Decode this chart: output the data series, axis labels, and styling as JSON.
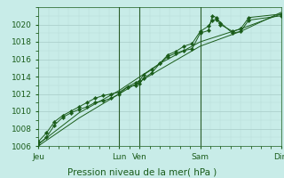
{
  "background_color": "#c8ece8",
  "plot_bg_color": "#c8ece8",
  "grid_major_color": "#a8ccc8",
  "grid_minor_color": "#b8dcd8",
  "line_color": "#1a5c1a",
  "marker_color": "#1a5c1a",
  "vline_color": "#2a5c2a",
  "xlabel": "Pression niveau de la mer( hPa )",
  "xlabel_fontsize": 7.5,
  "tick_fontsize": 6.5,
  "ylim": [
    1006,
    1022
  ],
  "yticks": [
    1006,
    1008,
    1010,
    1012,
    1014,
    1016,
    1018,
    1020
  ],
  "xlim": [
    0,
    300
  ],
  "day_labels": [
    "Jeu",
    "Lun",
    "Ven",
    "Sam",
    "Dim"
  ],
  "day_positions": [
    0,
    100,
    125,
    200,
    300
  ],
  "vline_positions": [
    100,
    125,
    200,
    300
  ],
  "series1": [
    [
      0,
      1006.2
    ],
    [
      10,
      1007.0
    ],
    [
      20,
      1008.4
    ],
    [
      30,
      1009.3
    ],
    [
      40,
      1009.8
    ],
    [
      50,
      1010.2
    ],
    [
      60,
      1010.5
    ],
    [
      70,
      1011.0
    ],
    [
      80,
      1011.2
    ],
    [
      90,
      1011.5
    ],
    [
      100,
      1012.0
    ],
    [
      110,
      1012.8
    ],
    [
      120,
      1013.0
    ],
    [
      125,
      1013.2
    ],
    [
      130,
      1013.8
    ],
    [
      140,
      1014.4
    ],
    [
      150,
      1015.5
    ],
    [
      160,
      1016.3
    ],
    [
      170,
      1016.7
    ],
    [
      180,
      1017.0
    ],
    [
      190,
      1017.2
    ],
    [
      200,
      1019.0
    ],
    [
      210,
      1019.3
    ],
    [
      215,
      1021.0
    ],
    [
      220,
      1020.8
    ],
    [
      225,
      1020.2
    ],
    [
      240,
      1019.0
    ],
    [
      250,
      1019.2
    ],
    [
      260,
      1020.5
    ],
    [
      300,
      1021.0
    ]
  ],
  "series2": [
    [
      0,
      1006.5
    ],
    [
      10,
      1007.5
    ],
    [
      20,
      1008.8
    ],
    [
      30,
      1009.5
    ],
    [
      40,
      1010.0
    ],
    [
      50,
      1010.5
    ],
    [
      60,
      1011.0
    ],
    [
      70,
      1011.5
    ],
    [
      80,
      1011.8
    ],
    [
      90,
      1012.0
    ],
    [
      100,
      1012.2
    ],
    [
      110,
      1012.8
    ],
    [
      120,
      1013.3
    ],
    [
      125,
      1013.5
    ],
    [
      130,
      1014.2
    ],
    [
      140,
      1014.8
    ],
    [
      150,
      1015.5
    ],
    [
      160,
      1016.5
    ],
    [
      170,
      1016.9
    ],
    [
      180,
      1017.5
    ],
    [
      190,
      1017.8
    ],
    [
      200,
      1019.2
    ],
    [
      210,
      1019.8
    ],
    [
      215,
      1020.5
    ],
    [
      220,
      1020.6
    ],
    [
      225,
      1020.0
    ],
    [
      240,
      1019.2
    ],
    [
      250,
      1019.5
    ],
    [
      260,
      1020.8
    ],
    [
      300,
      1021.2
    ]
  ],
  "series3": [
    [
      0,
      1006.2
    ],
    [
      50,
      1009.8
    ],
    [
      100,
      1012.4
    ],
    [
      150,
      1015.5
    ],
    [
      200,
      1018.0
    ],
    [
      250,
      1019.5
    ],
    [
      300,
      1021.2
    ]
  ],
  "series4": [
    [
      0,
      1006.0
    ],
    [
      50,
      1009.2
    ],
    [
      100,
      1012.0
    ],
    [
      150,
      1014.8
    ],
    [
      200,
      1017.5
    ],
    [
      250,
      1019.2
    ],
    [
      300,
      1021.4
    ]
  ]
}
